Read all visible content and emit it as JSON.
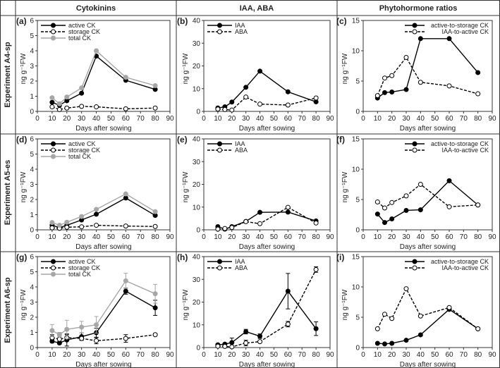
{
  "headers": [
    "Cytokinins",
    "IAA, ABA",
    "Phytohormone ratios"
  ],
  "row_labels": [
    "Experiment A4-sp",
    "Experiment A5-es",
    "Experiment A6-sp"
  ],
  "chart_data": [
    {
      "id": "a",
      "type": "line",
      "panel_label": "(a)",
      "xlabel": "Days after sowing",
      "ylabel": "ng g⁻¹FW",
      "xlim": [
        0,
        90
      ],
      "xticks": [
        0,
        10,
        20,
        30,
        40,
        50,
        60,
        70,
        80,
        90
      ],
      "ylim": [
        0,
        6
      ],
      "yticks": [
        0,
        1,
        2,
        3,
        4,
        5,
        6
      ],
      "legend": "top-left",
      "x": [
        10,
        15,
        20,
        30,
        40,
        60,
        80
      ],
      "series": [
        {
          "name": "active CK",
          "style": "solid-filled",
          "values": [
            0.6,
            0.4,
            0.7,
            1.2,
            3.65,
            2.05,
            1.45
          ]
        },
        {
          "name": "storage CK",
          "style": "dashed-open",
          "values": [
            0.3,
            0.12,
            0.22,
            0.33,
            0.3,
            0.17,
            0.22
          ]
        },
        {
          "name": "total CK",
          "style": "gray",
          "values": [
            0.9,
            0.5,
            0.95,
            1.55,
            4.0,
            2.25,
            1.7
          ]
        }
      ]
    },
    {
      "id": "b",
      "type": "line",
      "panel_label": "(b)",
      "xlabel": "Days after sowing",
      "ylabel": "ng g⁻¹FW",
      "xlim": [
        0,
        90
      ],
      "xticks": [
        0,
        10,
        20,
        30,
        40,
        50,
        60,
        70,
        80,
        90
      ],
      "ylim": [
        0,
        40
      ],
      "yticks": [
        0,
        10,
        20,
        30,
        40
      ],
      "legend": "top-left",
      "x": [
        10,
        15,
        20,
        30,
        40,
        60,
        80
      ],
      "series": [
        {
          "name": "IAA",
          "style": "solid-filled",
          "values": [
            1.5,
            2.0,
            4.1,
            10.6,
            17.7,
            8.6,
            4.2
          ]
        },
        {
          "name": "ABA",
          "style": "dashed-open",
          "values": [
            1.0,
            0.8,
            0.6,
            6.3,
            3.2,
            2.8,
            5.9
          ]
        }
      ]
    },
    {
      "id": "c",
      "type": "line",
      "panel_label": "(c)",
      "xlabel": "Days after sowing",
      "ylabel": "ng g⁻¹FW",
      "xlim": [
        0,
        90
      ],
      "xticks": [
        0,
        10,
        20,
        30,
        40,
        50,
        60,
        70,
        80,
        90
      ],
      "ylim": [
        0,
        15
      ],
      "yticks": [
        0,
        5,
        10,
        15
      ],
      "legend": "top-right",
      "x": [
        10,
        15,
        20,
        30,
        40,
        60,
        80
      ],
      "series": [
        {
          "name": "active-to-storage CK",
          "style": "solid-filled",
          "values": [
            2.2,
            3.1,
            3.2,
            3.6,
            12,
            12,
            6.4
          ]
        },
        {
          "name": "IAA-to-active CK",
          "style": "dashed-open",
          "values": [
            2.6,
            5.5,
            5.9,
            8.9,
            4.8,
            4.2,
            2.9
          ]
        }
      ]
    },
    {
      "id": "d",
      "type": "line",
      "panel_label": "(d)",
      "xlabel": "Days after sowing",
      "ylabel": "ng g⁻¹FW",
      "xlim": [
        0,
        90
      ],
      "xticks": [
        0,
        10,
        20,
        30,
        40,
        50,
        60,
        70,
        80,
        90
      ],
      "ylim": [
        0,
        6
      ],
      "yticks": [
        0,
        1,
        2,
        3,
        4,
        5,
        6
      ],
      "legend": "top-left",
      "x": [
        10,
        15,
        20,
        30,
        40,
        60,
        80
      ],
      "series": [
        {
          "name": "active CK",
          "style": "solid-filled",
          "values": [
            0.3,
            0.15,
            0.3,
            0.65,
            1.03,
            2.1,
            0.95
          ]
        },
        {
          "name": "storage CK",
          "style": "dashed-open",
          "values": [
            0.13,
            0.1,
            0.17,
            0.2,
            0.3,
            0.25,
            0.22
          ]
        },
        {
          "name": "total CK",
          "style": "gray",
          "values": [
            0.48,
            0.3,
            0.5,
            0.88,
            1.35,
            2.37,
            1.2
          ]
        }
      ]
    },
    {
      "id": "e",
      "type": "line",
      "panel_label": "(e)",
      "xlabel": "Days after sowing",
      "ylabel": "ng g⁻¹FW",
      "xlim": [
        0,
        90
      ],
      "xticks": [
        0,
        10,
        20,
        30,
        40,
        50,
        60,
        70,
        80,
        90
      ],
      "ylim": [
        0,
        40
      ],
      "yticks": [
        0,
        10,
        20,
        30,
        40
      ],
      "legend": "top-left",
      "x": [
        10,
        15,
        20,
        30,
        40,
        60,
        80
      ],
      "series": [
        {
          "name": "IAA",
          "style": "solid-filled",
          "values": [
            1.4,
            0.3,
            1.4,
            3.7,
            7.7,
            7.8,
            3.9
          ]
        },
        {
          "name": "ABA",
          "style": "dashed-open",
          "values": [
            0.3,
            0.6,
            1.0,
            3.6,
            2.7,
            9.9,
            3.0
          ]
        }
      ]
    },
    {
      "id": "f",
      "type": "line",
      "panel_label": "(f)",
      "xlabel": "Days after sowing",
      "ylabel": "ng g⁻¹FW",
      "xlim": [
        0,
        90
      ],
      "xticks": [
        0,
        10,
        20,
        30,
        40,
        50,
        60,
        70,
        80,
        90
      ],
      "ylim": [
        0,
        15
      ],
      "yticks": [
        0,
        5,
        10,
        15
      ],
      "legend": "top-right",
      "x": [
        10,
        15,
        20,
        30,
        40,
        60,
        80
      ],
      "series": [
        {
          "name": "active-to-storage CK",
          "style": "solid-filled",
          "values": [
            2.6,
            1.2,
            1.8,
            3.2,
            3.3,
            8.1,
            4.1
          ]
        },
        {
          "name": "IAA-to-active CK",
          "style": "dashed-open",
          "values": [
            4.6,
            3.6,
            4.5,
            5.6,
            7.5,
            3.8,
            4.1
          ]
        }
      ]
    },
    {
      "id": "g",
      "type": "line",
      "panel_label": "(g)",
      "xlabel": "Days after sowing",
      "ylabel": "ng g⁻¹FW",
      "xlim": [
        0,
        90
      ],
      "xticks": [
        0,
        10,
        20,
        30,
        40,
        50,
        60,
        70,
        80,
        90
      ],
      "ylim": [
        0,
        6
      ],
      "yticks": [
        0,
        1,
        2,
        3,
        4,
        5,
        6
      ],
      "legend": "top-left",
      "x": [
        10,
        15,
        20,
        30,
        40,
        60,
        80
      ],
      "series": [
        {
          "name": "active CK",
          "style": "solid-filled",
          "values": [
            0.42,
            0.3,
            0.5,
            0.72,
            0.98,
            3.72,
            2.62
          ],
          "errors": [
            0.1,
            0.08,
            0.4,
            0.25,
            0.3,
            0.2,
            0.5
          ]
        },
        {
          "name": "storage CK",
          "style": "dashed-open",
          "values": [
            0.65,
            0.55,
            0.65,
            0.6,
            0.45,
            0.6,
            0.85
          ],
          "errors": [
            0.2,
            0.15,
            0.2,
            0.1,
            0.2,
            0.25,
            0.07
          ]
        },
        {
          "name": "total CK",
          "style": "gray",
          "values": [
            1.12,
            0.85,
            1.2,
            1.35,
            1.5,
            4.4,
            3.55
          ],
          "errors": [
            0.4,
            0.15,
            0.6,
            0.38,
            0.55,
            0.5,
            0.62
          ]
        }
      ]
    },
    {
      "id": "h",
      "type": "line",
      "panel_label": "(h)",
      "xlabel": "Days after sowing",
      "ylabel": "ng g⁻¹FW",
      "xlim": [
        0,
        90
      ],
      "xticks": [
        0,
        10,
        20,
        30,
        40,
        50,
        60,
        70,
        80,
        90
      ],
      "ylim": [
        0,
        40
      ],
      "yticks": [
        0,
        10,
        20,
        30,
        40
      ],
      "legend": "top-left",
      "x": [
        10,
        15,
        20,
        30,
        40,
        60,
        80
      ],
      "series": [
        {
          "name": "IAA",
          "style": "solid-filled",
          "values": [
            1.2,
            1.5,
            2.2,
            7.0,
            5.0,
            24.8,
            8.3
          ],
          "errors": [
            0.5,
            0.5,
            2,
            1,
            1,
            7.8,
            3
          ]
        },
        {
          "name": "ABA",
          "style": "dashed-open",
          "values": [
            0.6,
            0.5,
            0.3,
            2.0,
            2.6,
            10.3,
            34.3
          ],
          "errors": [
            0.3,
            0.3,
            0.2,
            1.2,
            0.3,
            1.2,
            1.2
          ]
        }
      ]
    },
    {
      "id": "i",
      "type": "line",
      "panel_label": "(i)",
      "xlabel": "Days after sowing",
      "ylabel": "ng g⁻¹FW",
      "xlim": [
        0,
        90
      ],
      "xticks": [
        0,
        10,
        20,
        30,
        40,
        50,
        60,
        70,
        80,
        90
      ],
      "ylim": [
        0,
        15
      ],
      "yticks": [
        0,
        5,
        10,
        15
      ],
      "legend": "top-right",
      "x": [
        10,
        15,
        20,
        30,
        40,
        60,
        80
      ],
      "series": [
        {
          "name": "active-to-storage CK",
          "style": "solid-filled",
          "values": [
            0.7,
            0.6,
            0.7,
            1.2,
            2.1,
            6.3,
            3.1
          ]
        },
        {
          "name": "IAA-to-active CK",
          "style": "dashed-open",
          "values": [
            3.1,
            5.5,
            4.8,
            9.7,
            5.2,
            6.6,
            3.1
          ]
        }
      ]
    }
  ],
  "colors": {
    "line": "#000000",
    "gray": "#a6a6a6",
    "frame": "#333333"
  }
}
